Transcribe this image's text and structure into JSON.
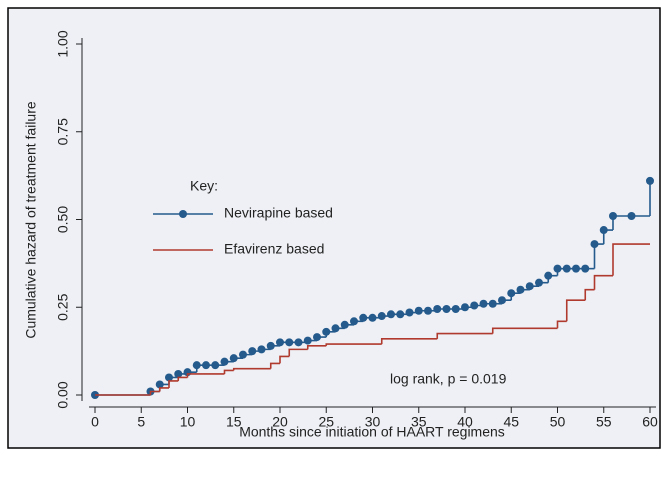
{
  "chart_data": {
    "type": "step",
    "ylabel": "Cumulative hazard of treatment failure",
    "xlabel": "Months since initiation of HAART regimens",
    "annotation": "log rank, p = 0.019",
    "legend_title": "Key:",
    "xlim": [
      0,
      60
    ],
    "ylim": [
      0,
      1
    ],
    "xticks": [
      0,
      5,
      10,
      15,
      20,
      25,
      30,
      35,
      40,
      45,
      50,
      55,
      60
    ],
    "yticks": [
      {
        "value": 0,
        "label": "0.00"
      },
      {
        "value": 0.25,
        "label": "0.25"
      },
      {
        "value": 0.5,
        "label": "0.50"
      },
      {
        "value": 0.75,
        "label": "0.75"
      },
      {
        "value": 1,
        "label": "1.00"
      }
    ],
    "series": [
      {
        "name": "Nevirapine based",
        "color": "#245a8c",
        "markers": true,
        "x": [
          0,
          6,
          7,
          8,
          9,
          10,
          11,
          12,
          13,
          14,
          15,
          16,
          17,
          18,
          19,
          20,
          21,
          22,
          23,
          24,
          25,
          26,
          27,
          28,
          29,
          30,
          31,
          32,
          33,
          34,
          35,
          36,
          37,
          38,
          39,
          40,
          41,
          42,
          43,
          44,
          45,
          46,
          47,
          48,
          49,
          50,
          51,
          52,
          53,
          54,
          55,
          56,
          58,
          60
        ],
        "values": [
          0,
          0.01,
          0.03,
          0.05,
          0.06,
          0.065,
          0.085,
          0.085,
          0.085,
          0.095,
          0.105,
          0.115,
          0.125,
          0.13,
          0.14,
          0.15,
          0.15,
          0.15,
          0.155,
          0.165,
          0.18,
          0.19,
          0.2,
          0.21,
          0.22,
          0.22,
          0.225,
          0.23,
          0.23,
          0.235,
          0.24,
          0.24,
          0.245,
          0.245,
          0.245,
          0.25,
          0.255,
          0.26,
          0.26,
          0.27,
          0.29,
          0.3,
          0.31,
          0.32,
          0.34,
          0.36,
          0.36,
          0.36,
          0.36,
          0.43,
          0.47,
          0.51,
          0.51,
          0.61
        ]
      },
      {
        "name": "Efavirenz based",
        "color": "#b03a2e",
        "markers": false,
        "x": [
          0,
          6,
          7,
          8,
          9,
          10,
          14,
          15,
          19,
          20,
          21,
          23,
          25,
          31,
          37,
          43,
          50,
          51,
          53,
          54,
          56,
          60
        ],
        "values": [
          0,
          0.01,
          0.02,
          0.04,
          0.05,
          0.06,
          0.07,
          0.075,
          0.09,
          0.11,
          0.13,
          0.14,
          0.145,
          0.16,
          0.175,
          0.19,
          0.21,
          0.27,
          0.3,
          0.34,
          0.43,
          0.43
        ]
      }
    ]
  }
}
